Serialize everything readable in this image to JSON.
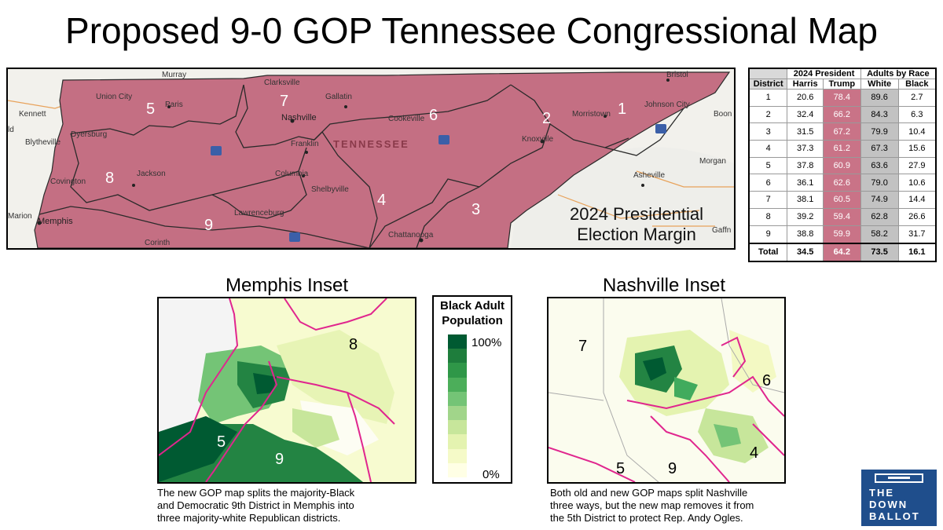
{
  "title": "Proposed 9-0 GOP Tennessee Congressional Map",
  "main_map": {
    "caption_line1": "2024 Presidential",
    "caption_line2": "Election Margin",
    "state_label": "TENNESSEE",
    "district_labels": [
      "1",
      "2",
      "3",
      "4",
      "5",
      "6",
      "7",
      "8",
      "9"
    ],
    "cities": {
      "murray": "Murray",
      "bristol": "Bristol",
      "clarksville": "Clarksville",
      "union_city": "Union City",
      "paris": "Paris",
      "kennett": "Kennett",
      "gallatin": "Gallatin",
      "nashville": "Nashville",
      "cookeville": "Cookeville",
      "morristown": "Morristown",
      "johnson_city": "Johnson City",
      "boone": "Boon",
      "blytheville": "Blytheville",
      "dyersburg": "Dyersburg",
      "franklin": "Franklin",
      "knoxville": "Knoxville",
      "morgan": "Morgan",
      "jackson": "Jackson",
      "covington": "Covington",
      "columbia": "Columbia",
      "shelbyville": "Shelbyville",
      "asheville": "Asheville",
      "marion": "Marion",
      "memphis": "Memphis",
      "lawrenceburg": "Lawrenceburg",
      "chattanooga": "Chattanooga",
      "corinth": "Corinth",
      "gaffney": "Gaffn",
      "ld": "ld"
    },
    "highway_shields": [
      "40",
      "40",
      "26",
      "65"
    ]
  },
  "table": {
    "group_headers": {
      "president": "2024 President",
      "race": "Adults by Race"
    },
    "columns": [
      "District",
      "Harris",
      "Trump",
      "White",
      "Black"
    ],
    "rows": [
      {
        "district": "1",
        "harris": "20.6",
        "trump": "78.4",
        "white": "89.6",
        "black": "2.7"
      },
      {
        "district": "2",
        "harris": "32.4",
        "trump": "66.2",
        "white": "84.3",
        "black": "6.3"
      },
      {
        "district": "3",
        "harris": "31.5",
        "trump": "67.2",
        "white": "79.9",
        "black": "10.4"
      },
      {
        "district": "4",
        "harris": "37.3",
        "trump": "61.2",
        "white": "67.3",
        "black": "15.6"
      },
      {
        "district": "5",
        "harris": "37.8",
        "trump": "60.9",
        "white": "63.6",
        "black": "27.9"
      },
      {
        "district": "6",
        "harris": "36.1",
        "trump": "62.6",
        "white": "79.0",
        "black": "10.6"
      },
      {
        "district": "7",
        "harris": "38.1",
        "trump": "60.5",
        "white": "74.9",
        "black": "14.4"
      },
      {
        "district": "8",
        "harris": "39.2",
        "trump": "59.4",
        "white": "62.8",
        "black": "26.6"
      },
      {
        "district": "9",
        "harris": "38.8",
        "trump": "59.9",
        "white": "58.2",
        "black": "31.7"
      }
    ],
    "total": {
      "district": "Total",
      "harris": "34.5",
      "trump": "64.2",
      "white": "73.5",
      "black": "16.1"
    }
  },
  "memphis_inset": {
    "title": "Memphis Inset",
    "labels": {
      "d8": "8",
      "d5": "5",
      "d9": "9"
    },
    "caption": [
      "The new GOP map splits the majority-Black",
      "and Democratic 9th District in Memphis into",
      "three majority-white Republican districts."
    ]
  },
  "nashville_inset": {
    "title": "Nashville Inset",
    "labels": {
      "d7": "7",
      "d6": "6",
      "d4": "4",
      "d5": "5",
      "d9": "9"
    },
    "caption": [
      "Both old and new GOP maps split Nashville",
      "three ways, but the new map removes it from",
      "the 5th District to protect Rep. Andy Ogles."
    ]
  },
  "legend": {
    "title_line1": "Black Adult",
    "title_line2": "Population",
    "max_label": "100%",
    "min_label": "0%",
    "scale_colors": [
      "#005a32",
      "#1e7d3c",
      "#2f9748",
      "#4cae5a",
      "#74c476",
      "#a1d58a",
      "#c7e69b",
      "#e4f3b0",
      "#f5fac8",
      "#ffffe5"
    ]
  },
  "colors": {
    "district_fill": "#c46f83",
    "district_border": "#2a2a2a",
    "district_line_pink": "#e0268e",
    "trump_cell": "#c97387",
    "white_cell": "#c2c2c2",
    "logo_blue": "#1f4e8c"
  },
  "logo": {
    "line1": "THE",
    "line2": "DOWN",
    "line3": "BALLOT",
    "icon": "ballot-box-icon"
  }
}
